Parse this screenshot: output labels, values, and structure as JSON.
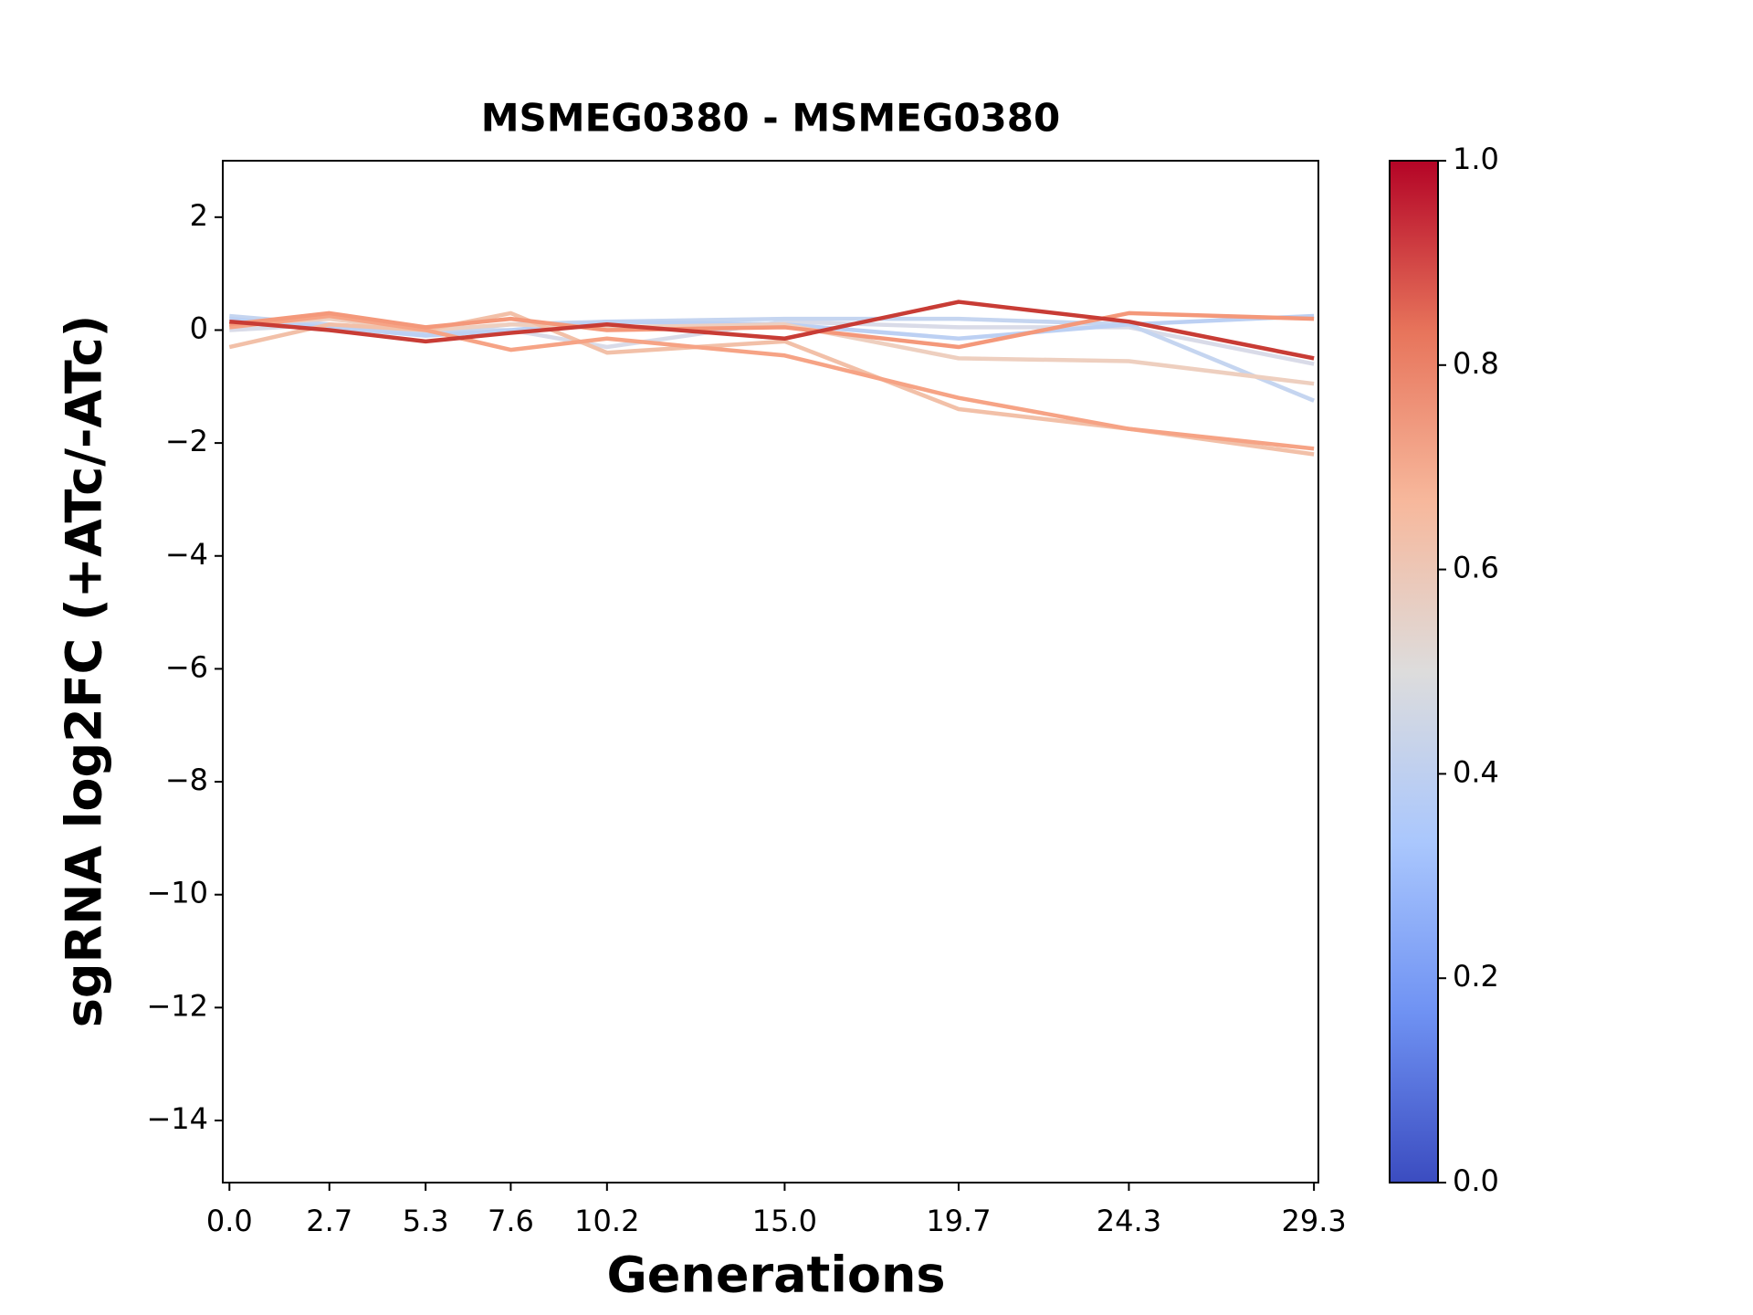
{
  "chart_data": {
    "type": "line",
    "title": "MSMEG0380 - MSMEG0380",
    "x_label": "Generations",
    "y_label": "sgRNA log2FC (+ATc/-ATc)",
    "x": [
      0.0,
      2.7,
      5.3,
      7.6,
      10.2,
      15.0,
      19.7,
      24.3,
      29.3
    ],
    "xlim": [
      -0.18,
      29.42
    ],
    "xticks": [
      {
        "value": 0.0,
        "label": "0.0"
      },
      2.7,
      5.3,
      7.6,
      10.2,
      {
        "value": 15.0,
        "label": "15.0"
      },
      19.7,
      24.3,
      29.3
    ],
    "ylim": [
      -15.1,
      3
    ],
    "yticks": [
      {
        "value": 2,
        "label": "2"
      },
      0,
      {
        "value": -2,
        "label": "−2"
      },
      {
        "value": -4,
        "label": "−4"
      },
      {
        "value": -6,
        "label": "−6"
      },
      {
        "value": -8,
        "label": "−8"
      },
      {
        "value": -10,
        "label": "−10"
      },
      {
        "value": -12,
        "label": "−12"
      },
      {
        "value": -14,
        "label": "−14"
      }
    ],
    "grid": false,
    "series": [
      {
        "color": "#d9dbe8",
        "values": [
          0.0,
          0.1,
          0.0,
          0.0,
          -0.3,
          0.15,
          0.05,
          0.05,
          -0.6
        ]
      },
      {
        "color": "#c5d5f0",
        "values": [
          0.25,
          0.1,
          -0.05,
          0.1,
          0.15,
          0.2,
          0.2,
          0.1,
          -1.25
        ]
      },
      {
        "color": "#bcd0f3",
        "values": [
          0.2,
          0.05,
          -0.1,
          0.0,
          0.15,
          0.1,
          -0.15,
          0.1,
          0.25
        ]
      },
      {
        "color": "#eecfbf",
        "values": [
          0.1,
          0.2,
          0.0,
          0.1,
          0.05,
          0.1,
          -0.5,
          -0.55,
          -0.95
        ]
      },
      {
        "color": "#f2c0a8",
        "values": [
          -0.3,
          0.1,
          0.0,
          0.3,
          -0.4,
          -0.2,
          -1.4,
          -1.75,
          -2.2
        ]
      },
      {
        "color": "#f6a385",
        "values": [
          0.05,
          0.25,
          0.0,
          -0.35,
          -0.15,
          -0.45,
          -1.2,
          -1.75,
          -2.1
        ]
      },
      {
        "color": "#f4987a",
        "values": [
          0.1,
          0.3,
          0.05,
          0.2,
          0.0,
          0.05,
          -0.3,
          0.3,
          0.2
        ]
      },
      {
        "color": "#c83c35",
        "values": [
          0.15,
          0.0,
          -0.2,
          -0.05,
          0.1,
          -0.15,
          0.5,
          0.15,
          -0.5
        ]
      }
    ],
    "colorbar": {
      "lim": [
        0,
        1
      ],
      "ticks": [
        {
          "value": 0,
          "label": "0.0"
        },
        {
          "value": 0.2,
          "label": "0.2"
        },
        {
          "value": 0.4,
          "label": "0.4"
        },
        {
          "value": 0.6,
          "label": "0.6"
        },
        {
          "value": 0.8,
          "label": "0.8"
        },
        {
          "value": 1,
          "label": "1.0"
        }
      ],
      "colormap": [
        "#3b4cc0",
        "#6f92f3",
        "#aac7fd",
        "#dddcdc",
        "#f7b89c",
        "#e7745b",
        "#b40426"
      ]
    }
  }
}
